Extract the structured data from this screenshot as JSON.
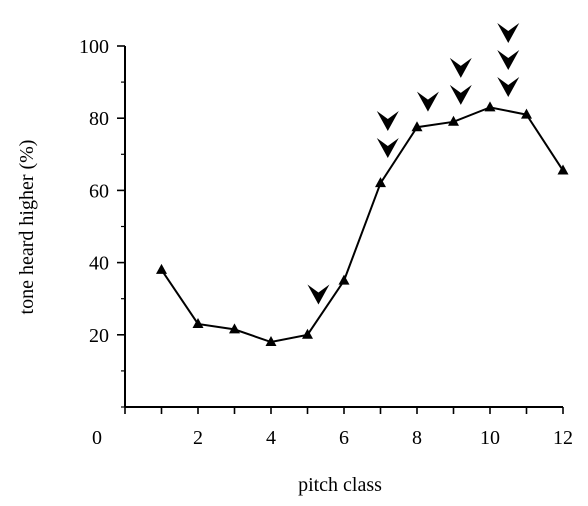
{
  "chart_data": {
    "type": "line",
    "title": "",
    "xlabel": "pitch class",
    "ylabel": "tone heard higher (%)",
    "xlim": [
      0,
      12
    ],
    "ylim": [
      0,
      100
    ],
    "x_ticks": [
      2,
      4,
      6,
      8,
      10,
      12
    ],
    "x_tick_labels": [
      "2",
      "4",
      "6",
      "8",
      "10",
      "12"
    ],
    "x_origin_label": "0",
    "y_ticks": [
      20,
      40,
      60,
      80,
      100
    ],
    "y_tick_labels": [
      "20",
      "40",
      "60",
      "80",
      "100"
    ],
    "grid": false,
    "legend": "none",
    "marker": "triangle",
    "series": [
      {
        "x": [
          1,
          2,
          3,
          4,
          5,
          6,
          7,
          8,
          9,
          10,
          11,
          12
        ],
        "values": [
          38,
          23,
          21.5,
          18,
          20,
          35,
          62,
          77.5,
          79,
          83,
          81,
          65.5
        ]
      }
    ],
    "annotations": [
      {
        "type": "arrowheads",
        "x": 5.3,
        "count": 1
      },
      {
        "type": "arrowheads",
        "x": 7.2,
        "count": 2
      },
      {
        "type": "arrowheads",
        "x": 8.3,
        "count": 1
      },
      {
        "type": "arrowheads",
        "x": 9.2,
        "count": 2
      },
      {
        "type": "arrowheads",
        "x": 10.5,
        "count": 3
      }
    ]
  }
}
